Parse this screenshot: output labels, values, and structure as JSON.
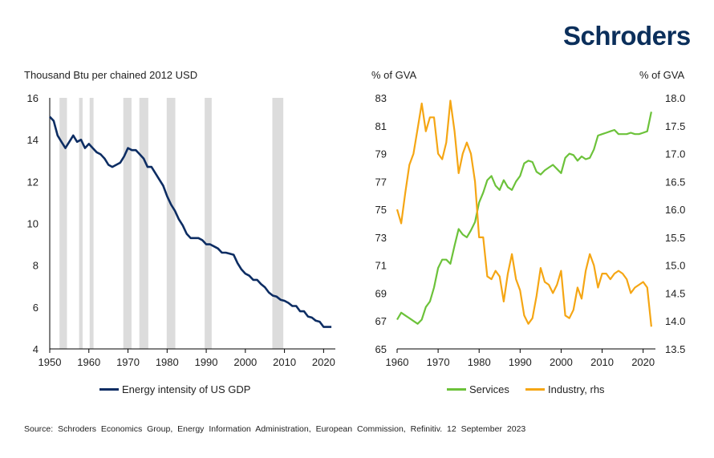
{
  "brand": "Schroders",
  "source": "Source: Schroders Economics Group, Energy Information Administration, European Commission, Refinitiv. 12 September 2023",
  "colors": {
    "navy": "#0d2d63",
    "green": "#6cc23a",
    "orange": "#f5a614",
    "shade": "#dcdcdc",
    "axis": "#000000"
  },
  "chart_data": [
    {
      "type": "line",
      "ylabel": "Thousand Btu per chained 2012 USD",
      "xlim": [
        1950,
        2023
      ],
      "ylim": [
        4,
        16
      ],
      "xticks": [
        "1950",
        "1960",
        "1970",
        "1980",
        "1990",
        "2000",
        "2010",
        "2020"
      ],
      "yticks": [
        "4",
        "6",
        "8",
        "10",
        "12",
        "14",
        "16"
      ],
      "recession_periods": [
        [
          1952.5,
          1954.4
        ],
        [
          1957.5,
          1958.4
        ],
        [
          1960.2,
          1961.2
        ],
        [
          1968.8,
          1970.9
        ],
        [
          1972.9,
          1975.2
        ],
        [
          1979.9,
          1982.1
        ],
        [
          1989.6,
          1991.4
        ],
        [
          2006.9,
          2009.7
        ]
      ],
      "series": [
        {
          "name": "Energy intensity of US GDP",
          "x": [
            1950,
            1951,
            1952,
            1953,
            1954,
            1955,
            1956,
            1957,
            1958,
            1959,
            1960,
            1961,
            1962,
            1963,
            1964,
            1965,
            1966,
            1967,
            1968,
            1969,
            1970,
            1971,
            1972,
            1973,
            1974,
            1975,
            1976,
            1977,
            1978,
            1979,
            1980,
            1981,
            1982,
            1983,
            1984,
            1985,
            1986,
            1987,
            1988,
            1989,
            1990,
            1991,
            1992,
            1993,
            1994,
            1995,
            1996,
            1997,
            1998,
            1999,
            2000,
            2001,
            2002,
            2003,
            2004,
            2005,
            2006,
            2007,
            2008,
            2009,
            2010,
            2011,
            2012,
            2013,
            2014,
            2015,
            2016,
            2017,
            2018,
            2019,
            2020,
            2021,
            2022
          ],
          "values": [
            15.1,
            14.9,
            14.2,
            13.9,
            13.6,
            13.9,
            14.2,
            13.9,
            14.0,
            13.6,
            13.8,
            13.6,
            13.4,
            13.3,
            13.1,
            12.8,
            12.7,
            12.8,
            12.9,
            13.2,
            13.6,
            13.5,
            13.5,
            13.3,
            13.1,
            12.7,
            12.7,
            12.4,
            12.1,
            11.8,
            11.3,
            10.9,
            10.6,
            10.2,
            9.9,
            9.5,
            9.3,
            9.3,
            9.3,
            9.2,
            9.0,
            9.0,
            8.9,
            8.8,
            8.6,
            8.6,
            8.55,
            8.5,
            8.1,
            7.8,
            7.6,
            7.5,
            7.3,
            7.3,
            7.1,
            6.95,
            6.7,
            6.55,
            6.5,
            6.35,
            6.3,
            6.2,
            6.05,
            6.05,
            5.8,
            5.8,
            5.55,
            5.5,
            5.35,
            5.3,
            5.05,
            5.05,
            5.05
          ]
        }
      ]
    },
    {
      "type": "line",
      "ylabel_left": "% of GVA",
      "ylabel_right": "% of GVA",
      "xlim": [
        1960,
        2023
      ],
      "ylim_left": [
        65,
        83
      ],
      "ylim_right": [
        13.5,
        18.0
      ],
      "xticks": [
        "1960",
        "1970",
        "1980",
        "1990",
        "2000",
        "2010",
        "2020"
      ],
      "yticks_left": [
        "65",
        "67",
        "69",
        "71",
        "73",
        "75",
        "77",
        "79",
        "81",
        "83"
      ],
      "yticks_right": [
        "13.5",
        "14.0",
        "14.5",
        "15.0",
        "15.5",
        "16.0",
        "16.5",
        "17.0",
        "17.5",
        "18.0"
      ],
      "series": [
        {
          "name": "Services",
          "axis": "left",
          "x": [
            1960,
            1961,
            1962,
            1963,
            1964,
            1965,
            1966,
            1967,
            1968,
            1969,
            1970,
            1971,
            1972,
            1973,
            1974,
            1975,
            1976,
            1977,
            1978,
            1979,
            1980,
            1981,
            1982,
            1983,
            1984,
            1985,
            1986,
            1987,
            1988,
            1989,
            1990,
            1991,
            1992,
            1993,
            1994,
            1995,
            1996,
            1997,
            1998,
            1999,
            2000,
            2001,
            2002,
            2003,
            2004,
            2005,
            2006,
            2007,
            2008,
            2009,
            2010,
            2011,
            2012,
            2013,
            2014,
            2015,
            2016,
            2017,
            2018,
            2019,
            2020,
            2021,
            2022
          ],
          "values": [
            67.1,
            67.6,
            67.4,
            67.2,
            67.0,
            66.8,
            67.1,
            68.0,
            68.4,
            69.4,
            70.8,
            71.4,
            71.4,
            71.1,
            72.4,
            73.6,
            73.2,
            73.0,
            73.5,
            74.1,
            75.5,
            76.2,
            77.1,
            77.4,
            76.7,
            76.4,
            77.1,
            76.6,
            76.4,
            77.0,
            77.4,
            78.3,
            78.5,
            78.4,
            77.7,
            77.5,
            77.8,
            78.0,
            78.2,
            77.9,
            77.6,
            78.7,
            79.0,
            78.9,
            78.5,
            78.8,
            78.6,
            78.7,
            79.3,
            80.3,
            80.4,
            80.5,
            80.6,
            80.7,
            80.4,
            80.4,
            80.4,
            80.5,
            80.4,
            80.4,
            80.5,
            80.6,
            82.0
          ]
        },
        {
          "name": "Industry, rhs",
          "axis": "right",
          "x": [
            1960,
            1961,
            1962,
            1963,
            1964,
            1965,
            1966,
            1967,
            1968,
            1969,
            1970,
            1971,
            1972,
            1973,
            1974,
            1975,
            1976,
            1977,
            1978,
            1979,
            1980,
            1981,
            1982,
            1983,
            1984,
            1985,
            1986,
            1987,
            1988,
            1989,
            1990,
            1991,
            1992,
            1993,
            1994,
            1995,
            1996,
            1997,
            1998,
            1999,
            2000,
            2001,
            2002,
            2003,
            2004,
            2005,
            2006,
            2007,
            2008,
            2009,
            2010,
            2011,
            2012,
            2013,
            2014,
            2015,
            2016,
            2017,
            2018,
            2019,
            2020,
            2021,
            2022
          ],
          "values": [
            16.0,
            15.75,
            16.3,
            16.8,
            17.0,
            17.45,
            17.9,
            17.4,
            17.65,
            17.65,
            17.0,
            16.9,
            17.2,
            17.95,
            17.4,
            16.65,
            17.0,
            17.2,
            17.0,
            16.5,
            15.5,
            15.5,
            14.8,
            14.75,
            14.9,
            14.8,
            14.35,
            14.85,
            15.2,
            14.75,
            14.55,
            14.1,
            13.95,
            14.05,
            14.45,
            14.95,
            14.7,
            14.65,
            14.5,
            14.65,
            14.9,
            14.1,
            14.05,
            14.2,
            14.6,
            14.4,
            14.9,
            15.2,
            15.0,
            14.6,
            14.85,
            14.85,
            14.75,
            14.85,
            14.9,
            14.85,
            14.75,
            14.5,
            14.6,
            14.65,
            14.7,
            14.6,
            13.9
          ]
        }
      ]
    }
  ]
}
